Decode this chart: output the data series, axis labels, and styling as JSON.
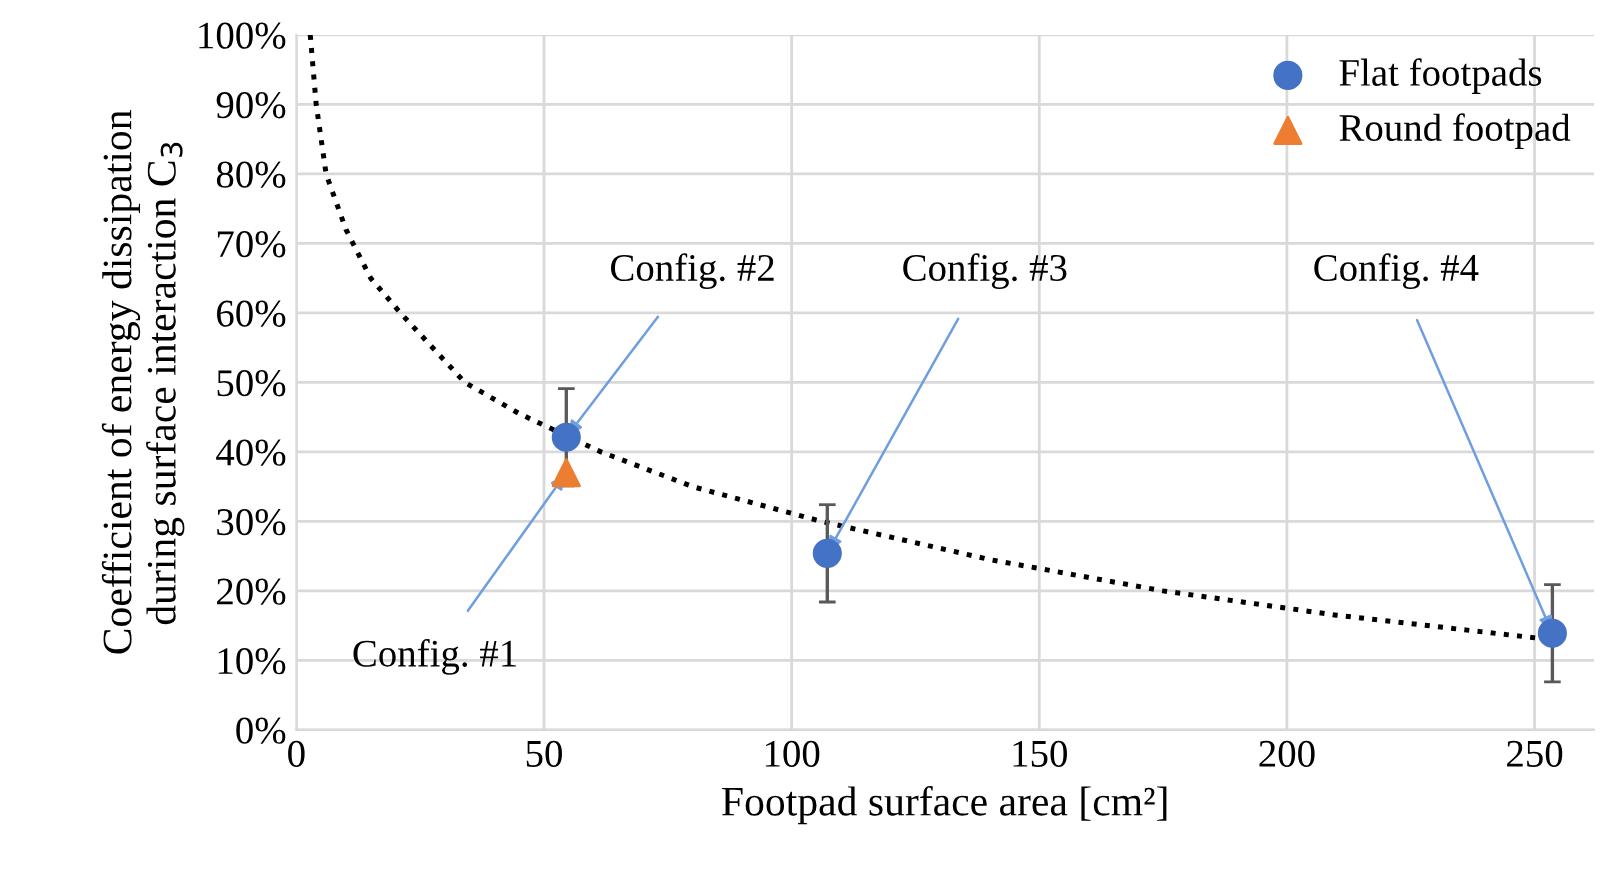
{
  "chart_data": {
    "type": "scatter",
    "xlabel": "Footpad surface area [cm²]",
    "ylabel": "Coefficient of energy dissipation\nduring surface interaction C$_{3}$",
    "xlim": [
      0,
      262
    ],
    "xticks": [
      0,
      50,
      100,
      150,
      200,
      250
    ],
    "ylim": [
      0,
      100
    ],
    "yticks": [
      {
        "value": 0,
        "label": "0%"
      },
      {
        "value": 10,
        "label": "10%"
      },
      {
        "value": 20,
        "label": "20%"
      },
      {
        "value": 30,
        "label": "30%"
      },
      {
        "value": 40,
        "label": "40%"
      },
      {
        "value": 50,
        "label": "50%"
      },
      {
        "value": 60,
        "label": "60%"
      },
      {
        "value": 70,
        "label": "70%"
      },
      {
        "value": 80,
        "label": "80%"
      },
      {
        "value": 90,
        "label": "90%"
      },
      {
        "value": 100,
        "label": "100%"
      }
    ],
    "grid": true,
    "legend": "top right",
    "series": [
      {
        "type": "line",
        "line_style": "dotted",
        "marker": "none",
        "color": "#000000",
        "x": [
          2.8,
          4,
          6,
          10,
          15,
          21,
          34,
          45,
          61.5,
          80,
          106,
          140,
          175,
          210,
          253
        ],
        "values": [
          100,
          90,
          80,
          72,
          65,
          60,
          50,
          45.5,
          40,
          35,
          30,
          24.5,
          20,
          16.5,
          13
        ]
      },
      {
        "name": "Flat footpads",
        "marker": "circle",
        "color": "#4472c4",
        "x": [
          54.5,
          107.2,
          253.6
        ],
        "values": [
          42.1,
          25.4,
          13.9
        ],
        "errors": [
          7,
          7,
          7
        ]
      },
      {
        "name": "Round footpad",
        "marker": "triangle",
        "color": "#ed7d31",
        "x": [
          54.5
        ],
        "values": [
          37
        ]
      }
    ],
    "annotations": [
      {
        "text": "Config. #1",
        "x": 54.5,
        "y": 37
      },
      {
        "text": "Config. #2",
        "x": 54.5,
        "y": 42.1
      },
      {
        "text": "Config. #3",
        "x": 107.2,
        "y": 25.4
      },
      {
        "text": "Config. #4",
        "x": 253.6,
        "y": 13.9
      }
    ]
  }
}
